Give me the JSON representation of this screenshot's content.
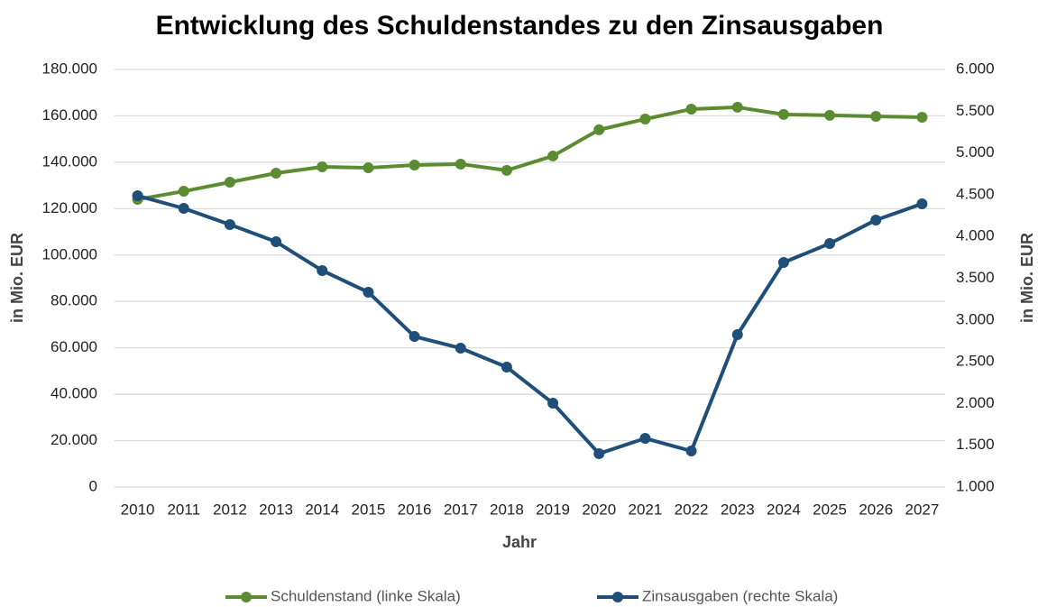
{
  "chart_data": {
    "type": "line",
    "title": "Entwicklung des Schuldenstandes zu den Zinsausgaben",
    "x_label": "Jahr",
    "y_label": "in Mio. EUR",
    "y2_label": "in Mio. EUR",
    "categories": [
      "2010",
      "2011",
      "2012",
      "2013",
      "2014",
      "2015",
      "2016",
      "2017",
      "2018",
      "2019",
      "2020",
      "2021",
      "2022",
      "2023",
      "2024",
      "2025",
      "2026",
      "2027"
    ],
    "series": [
      {
        "name": "Schuldenstand (linke Skala)",
        "color": "#5b8c32",
        "axis": "y",
        "values": [
          124000,
          127500,
          131400,
          135300,
          138000,
          137600,
          138800,
          139200,
          136500,
          142700,
          154000,
          158600,
          162900,
          163700,
          160600,
          160200,
          159800,
          159400
        ]
      },
      {
        "name": "Zinsausgaben (rechte Skala)",
        "color": "#1f4e79",
        "axis": "y2",
        "values": [
          4488,
          4337,
          4143,
          3937,
          3592,
          3333,
          2803,
          2663,
          2436,
          2004,
          1400,
          1583,
          1432,
          2825,
          3689,
          3916,
          4197,
          4391
        ]
      }
    ],
    "ylim": [
      0,
      180000
    ],
    "yticks": [
      0,
      {
        "value": 20000,
        "label": "20.000"
      },
      {
        "value": 40000,
        "label": "40.000"
      },
      {
        "value": 60000,
        "label": "60.000"
      },
      {
        "value": 80000,
        "label": "80.000"
      },
      {
        "value": 100000,
        "label": "100.000"
      },
      {
        "value": 120000,
        "label": "120.000"
      },
      {
        "value": 140000,
        "label": "140.000"
      },
      {
        "value": 160000,
        "label": "160.000"
      },
      {
        "value": 180000,
        "label": "180.000"
      }
    ],
    "y2lim": [
      1000,
      6000
    ],
    "y2ticks": [
      {
        "value": 1000,
        "label": "1.000"
      },
      {
        "value": 1500,
        "label": "1.500"
      },
      {
        "value": 2000,
        "label": "2.000"
      },
      {
        "value": 2500,
        "label": "2.500"
      },
      {
        "value": 3000,
        "label": "3.000"
      },
      {
        "value": 3500,
        "label": "3.500"
      },
      {
        "value": 4000,
        "label": "4.000"
      },
      {
        "value": 4500,
        "label": "4.500"
      },
      {
        "value": 5000,
        "label": "5.000"
      },
      {
        "value": 5500,
        "label": "5.500"
      },
      {
        "value": 6000,
        "label": "6.000"
      }
    ],
    "grid": true,
    "legend": "bottom"
  }
}
